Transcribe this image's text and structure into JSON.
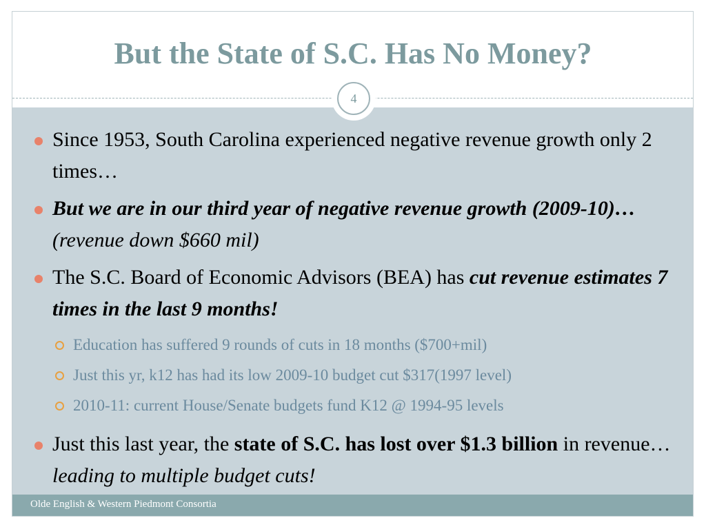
{
  "slide": {
    "title": "But the State of S.C. Has No Money?",
    "page_number": "4"
  },
  "bullets": {
    "b1": {
      "text": "Since 1953, South Carolina experienced negative revenue growth only 2 times…"
    },
    "b2": {
      "bold_italic": "But we are in our third year of negative revenue growth (2009-10)…",
      "italic": "(revenue down $660 mil)"
    },
    "b3": {
      "normal": "The S.C. Board of Economic Advisors (BEA) has ",
      "bold_italic": "cut revenue estimates 7 times in the last 9 months!"
    },
    "sub": [
      "Education has suffered 9 rounds of cuts in 18 months ($700+mil)",
      "Just this yr, k12 has had its low 2009-10 budget cut $317(1997 level)",
      "2010-11: current House/Senate budgets fund K12 @ 1994-95 levels"
    ],
    "b4": {
      "normal1": "Just this last year, the ",
      "bold": "state of S.C. has lost over $1.3 billion",
      "normal2": " in revenue… ",
      "italic": "leading to multiple budget cuts!"
    }
  },
  "footer": {
    "text": "Olde English & Western Piedmont Consortia"
  }
}
